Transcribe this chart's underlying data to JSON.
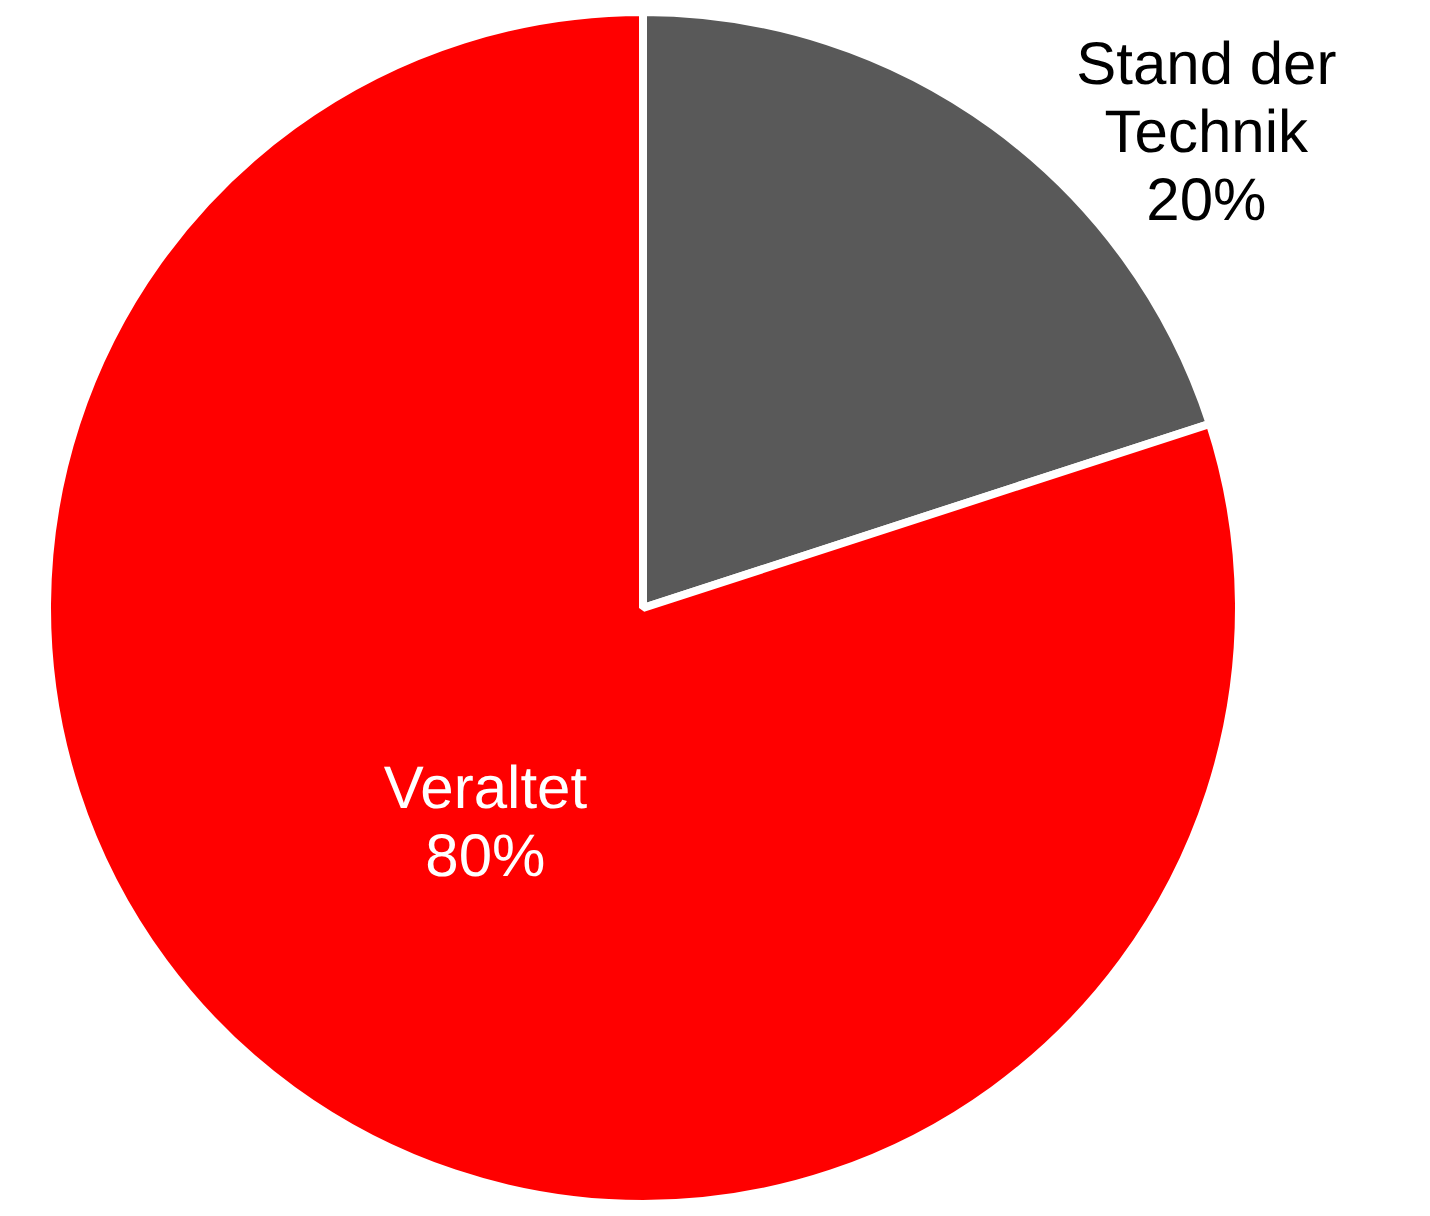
{
  "chart_data": {
    "type": "pie",
    "categories": [
      "Stand der Technik",
      "Veraltet"
    ],
    "values": [
      20,
      80
    ],
    "colors": [
      "#595959",
      "#ff0000"
    ],
    "value_labels": [
      "20%",
      "80%"
    ],
    "legend": false
  }
}
